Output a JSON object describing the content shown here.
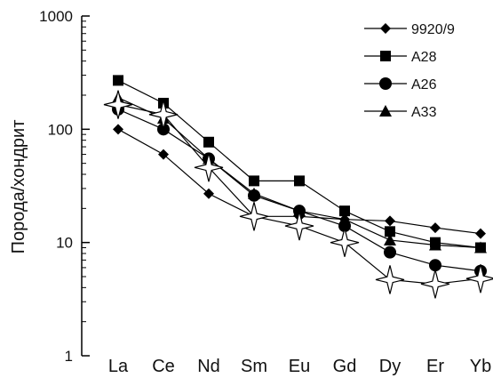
{
  "chart_data": {
    "type": "line",
    "ylabel": "Порода/хондрит",
    "xlabel": "",
    "title": "",
    "yscale": "log",
    "ylim": [
      1,
      1000
    ],
    "yticks": [
      1,
      10,
      100,
      1000
    ],
    "ytick_labels": [
      "1",
      "10",
      "100",
      "1000"
    ],
    "grid": false,
    "legend_position": "top-right",
    "categories": [
      "La",
      "Ce",
      "Nd",
      "Sm",
      "Eu",
      "Gd",
      "Dy",
      "Er",
      "Yb"
    ],
    "series": [
      {
        "name": "9920/9",
        "marker": "diamond",
        "values": [
          100,
          60,
          27,
          17,
          17,
          16,
          15.5,
          13.5,
          12
        ]
      },
      {
        "name": "A28",
        "marker": "square",
        "values": [
          270,
          170,
          77,
          35,
          35,
          19,
          12.5,
          10,
          9
        ]
      },
      {
        "name": "A26",
        "marker": "circle",
        "values": [
          150,
          100,
          55,
          26,
          19,
          14,
          8.2,
          6.3,
          5.6
        ]
      },
      {
        "name": "A33",
        "marker": "triangle",
        "values": [
          190,
          125,
          55,
          27,
          19,
          16,
          10.5,
          9.5,
          9
        ]
      },
      {
        "name": "",
        "marker": "star",
        "values": [
          165,
          135,
          46,
          17,
          14,
          10,
          4.7,
          4.3,
          4.8
        ]
      }
    ]
  }
}
